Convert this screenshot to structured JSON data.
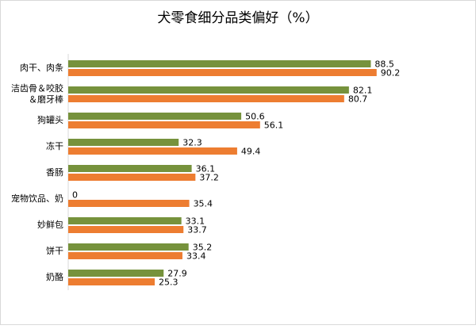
{
  "chart_data": {
    "type": "hbar",
    "title": "犬零食细分品类偏好（%）",
    "categories": [
      "肉干、肉条",
      "洁齿骨＆咬胶\n＆磨牙棒",
      "狗罐头",
      "冻干",
      "香肠",
      "宠物饮品、奶",
      "妙鲜包",
      "饼干",
      "奶酪"
    ],
    "series": [
      {
        "color": "#76923c",
        "values": [
          88.5,
          82.1,
          50.6,
          32.3,
          36.1,
          0,
          33.1,
          35.2,
          27.9
        ]
      },
      {
        "color": "#ed7d31",
        "values": [
          90.2,
          80.7,
          56.1,
          49.4,
          37.2,
          35.4,
          33.7,
          33.4,
          25.3
        ]
      }
    ],
    "xlim": [
      0,
      100
    ]
  }
}
